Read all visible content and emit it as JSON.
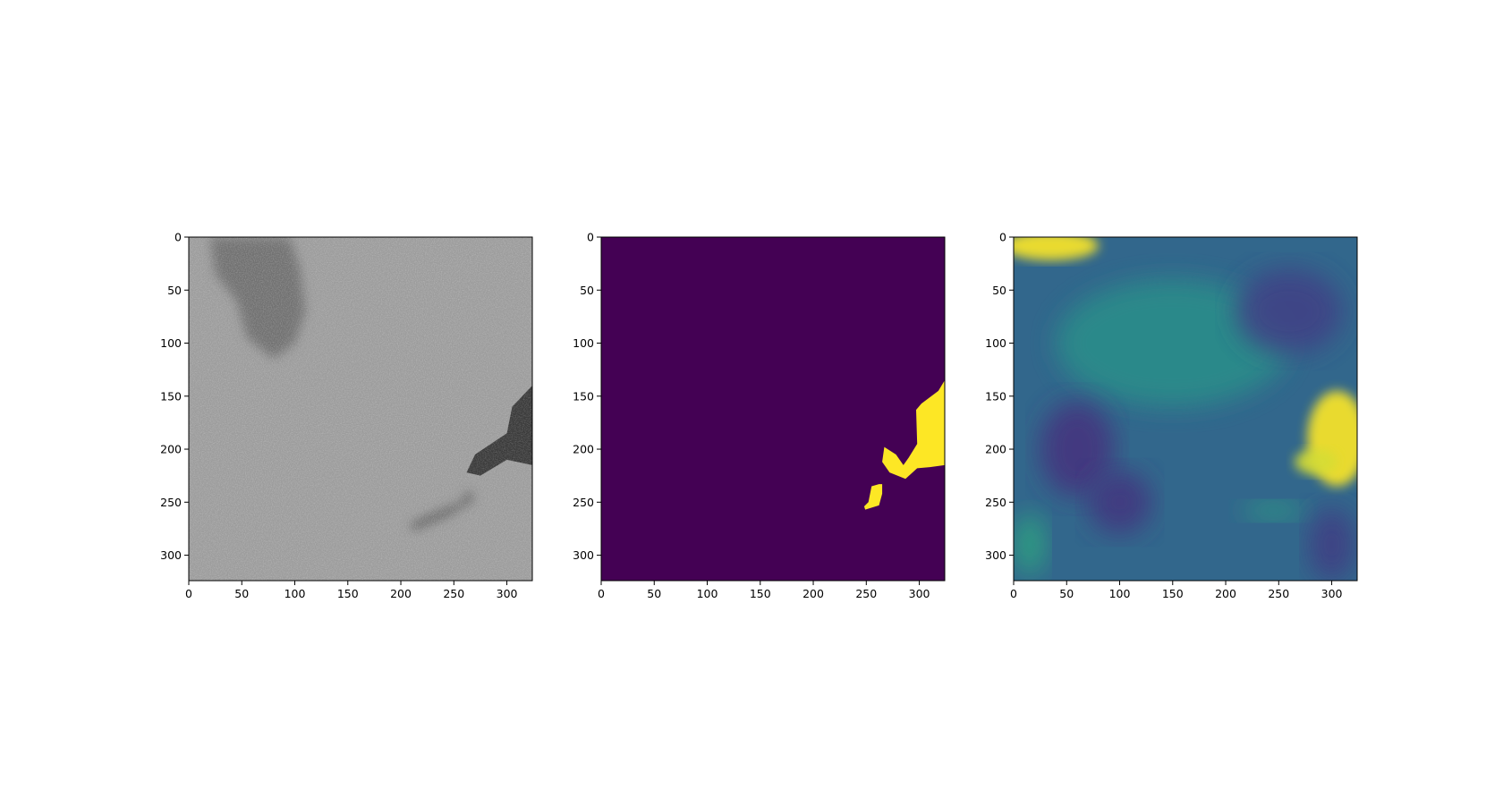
{
  "chart_data": [
    {
      "type": "heatmap",
      "panel": "sar-image",
      "colormap": "gray",
      "colormap_colors": [
        "#2a2a2a",
        "#c8c8c8"
      ],
      "xlim": [
        0,
        324
      ],
      "ylim": [
        324,
        0
      ],
      "x_ticks": [
        0,
        50,
        100,
        150,
        200,
        250,
        300
      ],
      "y_ticks": [
        0,
        50,
        100,
        150,
        200,
        250,
        300
      ],
      "x_tick_labels": [
        "0",
        "50",
        "100",
        "150",
        "200",
        "250",
        "300"
      ],
      "y_tick_labels": [
        "0",
        "50",
        "100",
        "150",
        "200",
        "250",
        "300"
      ],
      "background_level": 0.72,
      "dark_regions": [
        {
          "feature": "slick",
          "level": 0.1,
          "points": [
            [
              324,
              140
            ],
            [
              305,
              160
            ],
            [
              300,
              185
            ],
            [
              270,
              205
            ],
            [
              262,
              222
            ],
            [
              275,
              225
            ],
            [
              300,
              210
            ],
            [
              324,
              215
            ]
          ]
        },
        {
          "feature": "streak",
          "level": 0.25,
          "points": [
            [
              265,
              238
            ],
            [
              258,
              250
            ],
            [
              222,
              265
            ],
            [
              208,
              272
            ],
            [
              212,
              276
            ],
            [
              245,
              262
            ],
            [
              268,
              248
            ]
          ]
        },
        {
          "feature": "dark-patch-top-left",
          "level": 0.45,
          "points": [
            [
              20,
              0
            ],
            [
              95,
              0
            ],
            [
              105,
              30
            ],
            [
              110,
              70
            ],
            [
              100,
              100
            ],
            [
              80,
              115
            ],
            [
              55,
              95
            ],
            [
              45,
              60
            ],
            [
              25,
              35
            ]
          ]
        }
      ]
    },
    {
      "type": "heatmap",
      "panel": "mask",
      "colormap": "viridis",
      "colormap_colors": [
        "#440154",
        "#fde725"
      ],
      "values_range": [
        0,
        1
      ],
      "xlim": [
        0,
        324
      ],
      "ylim": [
        324,
        0
      ],
      "x_ticks": [
        0,
        50,
        100,
        150,
        200,
        250,
        300
      ],
      "y_ticks": [
        0,
        50,
        100,
        150,
        200,
        250,
        300
      ],
      "x_tick_labels": [
        "0",
        "50",
        "100",
        "150",
        "200",
        "250",
        "300"
      ],
      "y_tick_labels": [
        "0",
        "50",
        "100",
        "150",
        "200",
        "250",
        "300"
      ],
      "regions": [
        {
          "value": 1,
          "points": [
            [
              324,
              135
            ],
            [
              318,
              145
            ],
            [
              302,
              157
            ],
            [
              297,
              163
            ],
            [
              298,
              195
            ],
            [
              290,
              208
            ],
            [
              285,
              215
            ],
            [
              278,
              205
            ],
            [
              267,
              198
            ],
            [
              265,
              212
            ],
            [
              272,
              222
            ],
            [
              287,
              228
            ],
            [
              298,
              218
            ],
            [
              310,
              217
            ],
            [
              324,
              215
            ]
          ]
        },
        {
          "value": 1,
          "points": [
            [
              262,
              233
            ],
            [
              255,
              235
            ],
            [
              252,
              250
            ],
            [
              248,
              254
            ],
            [
              249,
              257
            ],
            [
              262,
              253
            ],
            [
              265,
              242
            ],
            [
              265,
              233
            ]
          ]
        }
      ]
    },
    {
      "type": "heatmap",
      "panel": "prediction",
      "colormap": "viridis",
      "colormap_colors": [
        "#482878",
        "#3e4989",
        "#26828e",
        "#35b779",
        "#fde725"
      ],
      "values_range": [
        0,
        1
      ],
      "xlim": [
        0,
        324
      ],
      "ylim": [
        324,
        0
      ],
      "x_ticks": [
        0,
        50,
        100,
        150,
        200,
        250,
        300
      ],
      "y_ticks": [
        0,
        50,
        100,
        150,
        200,
        250,
        300
      ],
      "x_tick_labels": [
        "0",
        "50",
        "100",
        "150",
        "200",
        "250",
        "300"
      ],
      "y_tick_labels": [
        "0",
        "50",
        "100",
        "150",
        "200",
        "250",
        "300"
      ],
      "background_level": 0.38,
      "blobs": [
        {
          "cx": 35,
          "cy": 8,
          "rx": 45,
          "ry": 14,
          "level": 1.0
        },
        {
          "cx": 150,
          "cy": 100,
          "rx": 110,
          "ry": 60,
          "level": 0.55
        },
        {
          "cx": 305,
          "cy": 190,
          "rx": 28,
          "ry": 45,
          "level": 1.0
        },
        {
          "cx": 285,
          "cy": 212,
          "rx": 20,
          "ry": 12,
          "level": 0.95
        },
        {
          "cx": 60,
          "cy": 200,
          "rx": 35,
          "ry": 45,
          "level": 0.1
        },
        {
          "cx": 100,
          "cy": 250,
          "rx": 30,
          "ry": 30,
          "level": 0.12
        },
        {
          "cx": 260,
          "cy": 70,
          "rx": 50,
          "ry": 40,
          "level": 0.2
        },
        {
          "cx": 15,
          "cy": 290,
          "rx": 15,
          "ry": 30,
          "level": 0.65
        },
        {
          "cx": 245,
          "cy": 258,
          "rx": 30,
          "ry": 8,
          "level": 0.62
        },
        {
          "cx": 300,
          "cy": 290,
          "rx": 22,
          "ry": 35,
          "level": 0.18
        }
      ]
    }
  ]
}
